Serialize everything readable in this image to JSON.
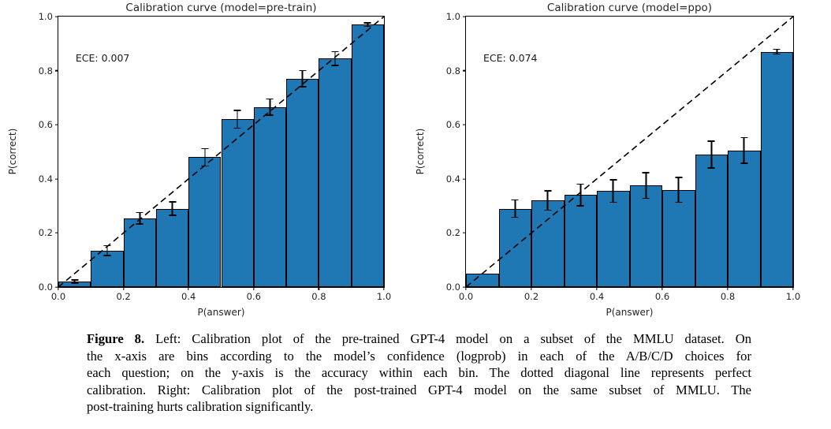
{
  "figure": {
    "caption": {
      "label": "Figure 8.",
      "lines": [
        "Left: Calibration plot of the pre-trained GPT-4 model on a subset of the MMLU dataset. On",
        "the x-axis are bins according to the model’s confidence (logprob) in each of the A/B/C/D choices for",
        "each question; on the y-axis is the accuracy within each bin. The dotted diagonal line represents perfect",
        "calibration. Right: Calibration plot of the post-trained GPT-4 model on the same subset of MMLU. The",
        "post-training hurts calibration significantly."
      ]
    }
  },
  "chart_data": [
    {
      "type": "bar",
      "title": "Calibration curve (model=pre-train)",
      "annotation": "ECE: 0.007",
      "xlabel": "P(answer)",
      "ylabel": "P(correct)",
      "xlim": [
        0.0,
        1.0
      ],
      "ylim": [
        0.0,
        1.0
      ],
      "xticks": [
        "0.0",
        "0.2",
        "0.4",
        "0.6",
        "0.8",
        "1.0"
      ],
      "yticks": [
        "0.0",
        "0.2",
        "0.4",
        "0.6",
        "0.8",
        "1.0"
      ],
      "bin_left_edges": [
        0.0,
        0.1,
        0.2,
        0.3,
        0.4,
        0.5,
        0.6,
        0.7,
        0.8,
        0.9
      ],
      "bin_width": 0.1,
      "values": [
        0.02,
        0.135,
        0.255,
        0.29,
        0.48,
        0.62,
        0.665,
        0.77,
        0.845,
        0.97
      ],
      "errors": [
        0.006,
        0.018,
        0.021,
        0.025,
        0.032,
        0.033,
        0.03,
        0.03,
        0.025,
        0.006
      ],
      "bar_color": "#1f77b4",
      "bar_edge_color": "#000000",
      "reference_line": "y=x dashed diagonal",
      "grid": false,
      "legend": "none"
    },
    {
      "type": "bar",
      "title": "Calibration curve (model=ppo)",
      "annotation": "ECE: 0.074",
      "xlabel": "P(answer)",
      "ylabel": "P(correct)",
      "xlim": [
        0.0,
        1.0
      ],
      "ylim": [
        0.0,
        1.0
      ],
      "xticks": [
        "0.0",
        "0.2",
        "0.4",
        "0.6",
        "0.8",
        "1.0"
      ],
      "yticks": [
        "0.0",
        "0.2",
        "0.4",
        "0.6",
        "0.8",
        "1.0"
      ],
      "bin_left_edges": [
        0.0,
        0.1,
        0.2,
        0.3,
        0.4,
        0.5,
        0.6,
        0.7,
        0.8,
        0.9
      ],
      "bin_width": 0.1,
      "values": [
        0.05,
        0.29,
        0.32,
        0.34,
        0.355,
        0.375,
        0.36,
        0.49,
        0.505,
        0.87
      ],
      "errors": [
        0,
        0.032,
        0.036,
        0.04,
        0.042,
        0.047,
        0.046,
        0.05,
        0.048,
        0.009
      ],
      "bar_color": "#1f77b4",
      "bar_edge_color": "#000000",
      "reference_line": "y=x dashed diagonal",
      "grid": false,
      "legend": "none"
    }
  ]
}
